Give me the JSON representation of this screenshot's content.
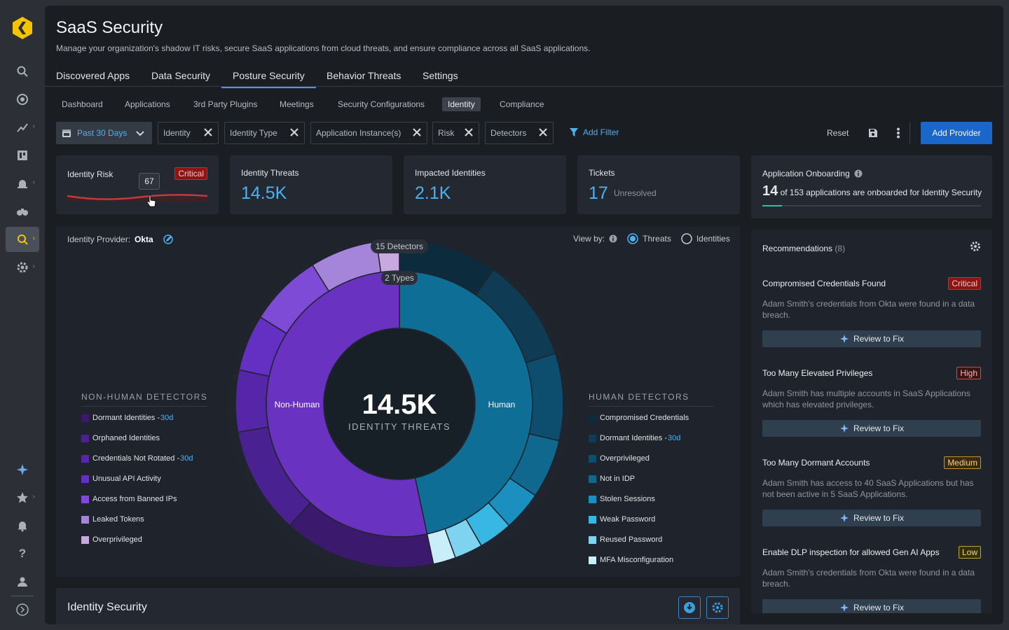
{
  "app": {
    "title": "SaaS Security",
    "subtitle": "Manage your organization's shadow IT risks, secure SaaS applications from cloud threats, and ensure compliance across all SaaS applications."
  },
  "tabs": [
    "Discovered Apps",
    "Data Security",
    "Posture Security",
    "Behavior Threats",
    "Settings"
  ],
  "active_tab": "Posture Security",
  "subtabs": [
    "Dashboard",
    "Applications",
    "3rd Party Plugins",
    "Meetings",
    "Security Configurations",
    "Identity",
    "Compliance"
  ],
  "active_subtab": "Identity",
  "filters": {
    "date": "Past 30 Days",
    "chips": [
      "Identity",
      "Identity Type",
      "Application Instance(s)",
      "Risk",
      "Detectors"
    ],
    "add_filter": "Add Filter",
    "reset": "Reset",
    "add_provider": "Add Provider"
  },
  "kpis": {
    "risk": {
      "label": "Identity Risk",
      "badge": "Critical",
      "tooltip": "67"
    },
    "threats": {
      "label": "Identity Threats",
      "value": "14.5K"
    },
    "impacted": {
      "label": "Impacted Identities",
      "value": "2.1K"
    },
    "tickets": {
      "label": "Tickets",
      "value": "17",
      "suffix": "Unresolved"
    }
  },
  "onboarding": {
    "label": "Application Onboarding",
    "count": "14",
    "text": "of 153 applications are onboarded for Identity Security",
    "progress": 0.09
  },
  "chart": {
    "provider_label": "Identity Provider:",
    "provider": "Okta",
    "view_by": "View by:",
    "opt_threats": "Threats",
    "opt_identities": "Identities",
    "outer_label": "15 Detectors",
    "inner_label": "2 Types",
    "center_value": "14.5K",
    "center_label": "IDENTITY THREATS",
    "nonhuman_label": "Non-Human",
    "human_label": "Human",
    "nonhuman_title": "NON-HUMAN DETECTORS",
    "human_title": "HUMAN DETECTORS"
  },
  "nonhuman": [
    {
      "name": "Dormant Identities - ",
      "tag": "30d",
      "color": "#3b1a6e"
    },
    {
      "name": "Orphaned Identities",
      "tag": "",
      "color": "#4a2190"
    },
    {
      "name": "Credentials Not Rotated - ",
      "tag": "30d",
      "color": "#5527a8"
    },
    {
      "name": "Unusual API Activity",
      "tag": "",
      "color": "#6430c4"
    },
    {
      "name": "Access from Banned IPs",
      "tag": "",
      "color": "#7d4bd6"
    },
    {
      "name": "Leaked Tokens",
      "tag": "",
      "color": "#a585d9"
    },
    {
      "name": "Overprivileged",
      "tag": "",
      "color": "#c7a9e0"
    }
  ],
  "human": [
    {
      "name": "Compromised Credentials",
      "tag": "",
      "color": "#0c2c3d"
    },
    {
      "name": "Dormant Identities - ",
      "tag": "30d",
      "color": "#0f3b54"
    },
    {
      "name": "Overprivileged",
      "tag": "",
      "color": "#0d4d6e"
    },
    {
      "name": "Not in IDP",
      "tag": "",
      "color": "#11688f"
    },
    {
      "name": "Stolen Sessions",
      "tag": "",
      "color": "#1b8fc0"
    },
    {
      "name": "Weak Password",
      "tag": "",
      "color": "#38b6e4"
    },
    {
      "name": "Reused Password",
      "tag": "",
      "color": "#7dd3f0"
    },
    {
      "name": "MFA Misconfiguration",
      "tag": "",
      "color": "#c9eef9"
    }
  ],
  "recommendations": {
    "title": "Recommendations",
    "count": "(8)",
    "items": [
      {
        "title": "Compromised Credentials Found",
        "severity": "Critical",
        "desc": "Adam Smith's credentials from Okta were found in a data breach.",
        "action": "Review to Fix"
      },
      {
        "title": "Too Many Elevated Privileges",
        "severity": "High",
        "desc": "Adam Smith has multiple accounts in SaaS Applications which has elevated privileges.",
        "action": "Review to Fix"
      },
      {
        "title": "Too Many Dormant Accounts",
        "severity": "Medium",
        "desc": "Adam Smith has access to 40 SaaS Applications but has not been active in 5 SaaS Applications.",
        "action": "Review to Fix"
      },
      {
        "title": "Enable DLP inspection for allowed Gen AI Apps",
        "severity": "Low",
        "desc": "Adam Smith's credentials from Okta were found in a data breach.",
        "action": "Review to Fix"
      }
    ]
  },
  "bottom": {
    "title": "Identity Security"
  }
}
